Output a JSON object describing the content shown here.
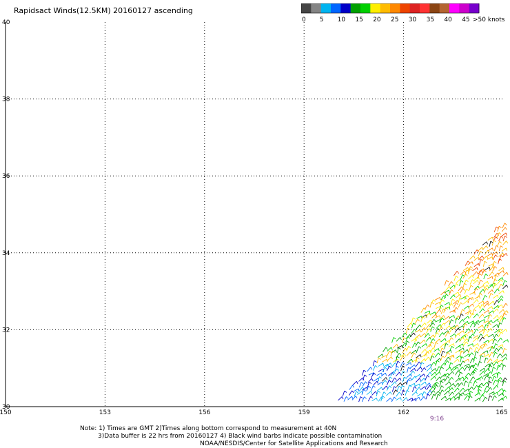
{
  "title": "Rapidsact Winds(12.5KM) 20160127 ascending",
  "colorbar": {
    "labels": [
      "0",
      "5",
      "10",
      "15",
      "20",
      "25",
      "30",
      "35",
      "40",
      "45",
      ">50 knots"
    ],
    "colors": [
      "#454545",
      "#848484",
      "#00b4f0",
      "#0066ff",
      "#0000c8",
      "#00a000",
      "#00d000",
      "#ffee00",
      "#ffbb00",
      "#ff8800",
      "#ee4400",
      "#dd2222",
      "#ff3333",
      "#8b4513",
      "#b46432",
      "#ff00ff",
      "#cc00cc",
      "#7700cc"
    ]
  },
  "map": {
    "lon_range": [
      150,
      165
    ],
    "lat_range": [
      30,
      40
    ],
    "lon_ticks": [
      "150",
      "153",
      "156",
      "159",
      "162",
      "165"
    ],
    "lat_ticks": [
      "40",
      "38",
      "36",
      "34",
      "32",
      "30"
    ],
    "pass_time": "9:16",
    "swath": {
      "description_free": true,
      "corners": [
        [
          159.9,
          30.05
        ],
        [
          165,
          30.05
        ],
        [
          165,
          34.8
        ]
      ],
      "palette": [
        "#0000c8",
        "#0066ff",
        "#00b4f0",
        "#00a000",
        "#00d000",
        "#ffee00",
        "#ffbb00",
        "#ff8800",
        "#ee4400",
        "#111111"
      ]
    }
  },
  "notes": {
    "line1": "Note: 1) Times are GMT 2)Times along bottom correspond to measurement at 40N",
    "line2": "3)Data buffer is 22 hrs from 20160127 4) Black wind barbs indicate possible contamination",
    "line3": "NOAA/NESDIS/Center for Satellite Applications and Research"
  }
}
